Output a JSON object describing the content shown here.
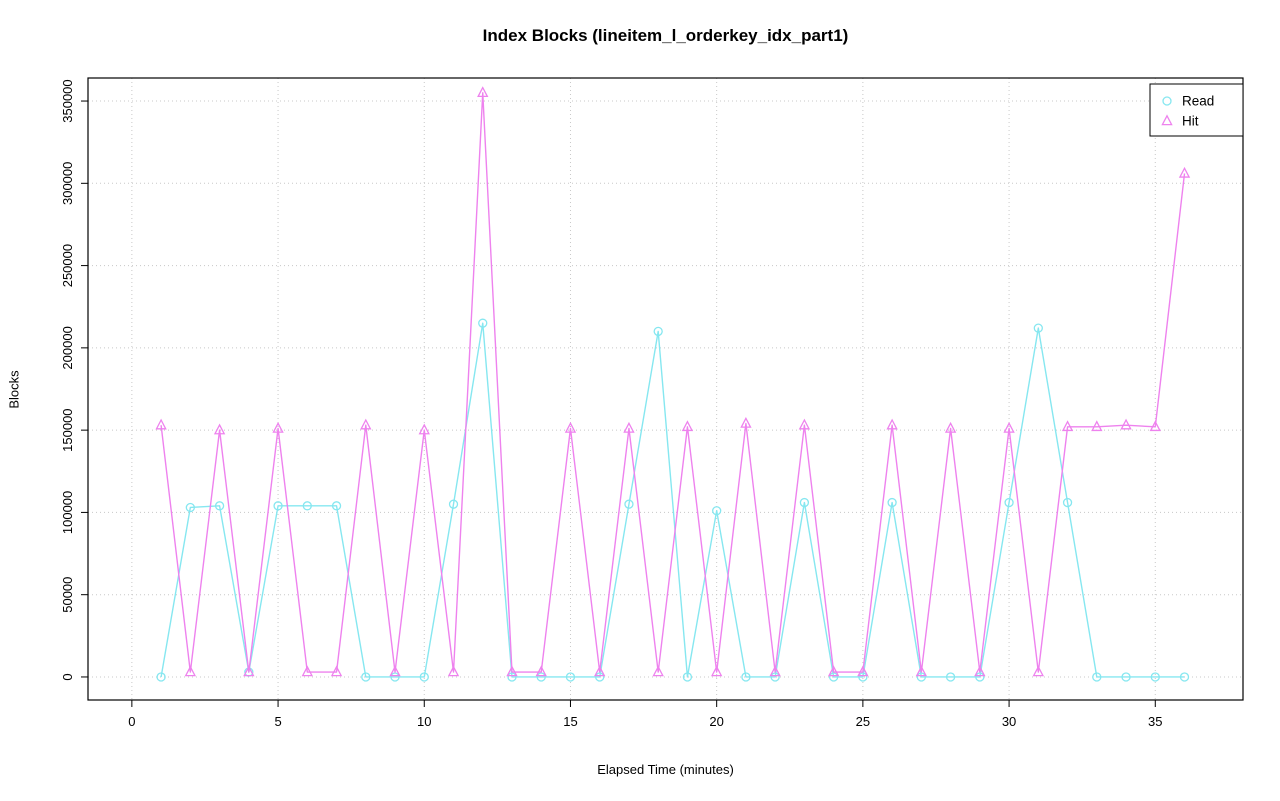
{
  "title": "Index Blocks (lineitem_l_orderkey_idx_part1)",
  "chart_data": {
    "type": "line",
    "title": "Index Blocks (lineitem_l_orderkey_idx_part1)",
    "xlabel": "Elapsed Time (minutes)",
    "ylabel": "Blocks",
    "x": [
      1,
      2,
      3,
      4,
      5,
      6,
      7,
      8,
      9,
      10,
      11,
      12,
      13,
      14,
      15,
      16,
      17,
      18,
      19,
      20,
      21,
      22,
      23,
      24,
      25,
      26,
      27,
      28,
      29,
      30,
      31,
      32,
      33,
      34,
      35,
      36
    ],
    "series": [
      {
        "name": "Read",
        "marker": "circle",
        "color": "#86E7F0",
        "values": [
          0,
          103000,
          104000,
          3000,
          104000,
          104000,
          104000,
          0,
          0,
          0,
          105000,
          215000,
          0,
          0,
          0,
          0,
          105000,
          210000,
          0,
          101000,
          0,
          0,
          106000,
          0,
          0,
          106000,
          0,
          0,
          0,
          106000,
          212000,
          106000,
          0,
          0,
          0,
          0
        ]
      },
      {
        "name": "Hit",
        "marker": "triangle",
        "color": "#EE82EE",
        "values": [
          153000,
          3000,
          150000,
          3000,
          151000,
          3000,
          3000,
          153000,
          3000,
          150000,
          3000,
          355000,
          3000,
          3000,
          151000,
          3000,
          151000,
          3000,
          152000,
          3000,
          154000,
          3000,
          153000,
          3000,
          3000,
          153000,
          3000,
          151000,
          3000,
          151000,
          3000,
          152000,
          152000,
          153000,
          152000,
          306000
        ]
      }
    ],
    "xticks": [
      0,
      5,
      10,
      15,
      20,
      25,
      30,
      35
    ],
    "yticks": [
      0,
      50000,
      100000,
      150000,
      200000,
      250000,
      300000,
      350000
    ],
    "xlim": [
      -1.5,
      38
    ],
    "ylim": [
      -14000,
      364000
    ],
    "grid": true,
    "grid_style": "dotted",
    "grid_color": "#c8c8c8",
    "box_color": "#000000",
    "legend_position": "top-right",
    "legend": [
      "Read",
      "Hit"
    ]
  }
}
